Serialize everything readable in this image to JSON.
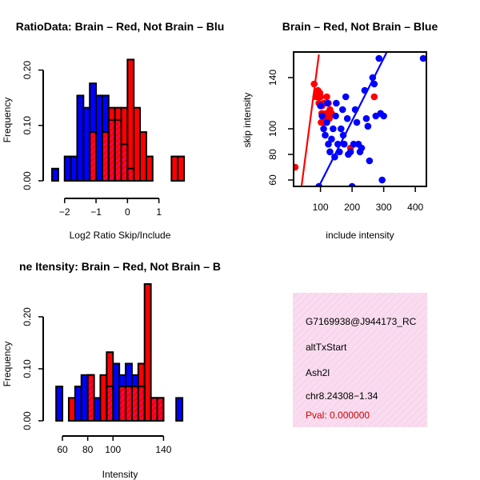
{
  "chart_data": [
    {
      "type": "histogram",
      "title": "RatioData: Brain – Red, Not Brain – Blu",
      "xlabel": "Log2 Ratio Skip/Include",
      "ylabel": "Frequency",
      "xlim": [
        -2.35,
        1.95
      ],
      "ylim": [
        0,
        0.25
      ],
      "xticks": [
        -2,
        -1,
        0,
        1
      ],
      "xtick_labels": [
        "−2",
        "−1",
        "0",
        "1"
      ],
      "yticks": [
        0.0,
        0.1,
        0.2
      ],
      "ytick_labels": [
        "0.00",
        "0.10",
        "0.20"
      ],
      "bin_width": 0.2,
      "series": [
        {
          "name": "Not Brain",
          "color": "#0000ff",
          "bins": [
            [
              -2.4,
              0.022
            ],
            [
              -2.0,
              0.044
            ],
            [
              -1.8,
              0.044
            ],
            [
              -1.6,
              0.154
            ],
            [
              -1.4,
              0.132
            ],
            [
              -1.2,
              0.176
            ],
            [
              -1.0,
              0.154
            ],
            [
              -0.8,
              0.154
            ],
            [
              -0.6,
              0.11
            ],
            [
              -0.4,
              0.11
            ],
            [
              -0.2,
              0.066
            ],
            [
              0.0,
              0.022
            ]
          ]
        },
        {
          "name": "Brain",
          "color": "#ff0000",
          "bins": [
            [
              -1.2,
              0.088
            ],
            [
              -0.8,
              0.088
            ],
            [
              -0.6,
              0.132
            ],
            [
              -0.4,
              0.132
            ],
            [
              -0.2,
              0.132
            ],
            [
              0.0,
              0.219
            ],
            [
              0.2,
              0.132
            ],
            [
              0.4,
              0.088
            ],
            [
              0.6,
              0.044
            ],
            [
              1.4,
              0.044
            ],
            [
              1.6,
              0.044
            ]
          ]
        }
      ]
    },
    {
      "type": "scatter",
      "title": "Brain – Red, Not Brain – Blue",
      "xlabel": "include intensity",
      "ylabel": "skip intensity",
      "xlim": [
        15,
        435
      ],
      "ylim": [
        55,
        160
      ],
      "xticks": [
        100,
        200,
        300,
        400
      ],
      "xtick_labels": [
        "100",
        "200",
        "300",
        "400"
      ],
      "yticks": [
        60,
        80,
        100,
        140
      ],
      "ytick_labels": [
        "60",
        "80",
        "100",
        "140"
      ],
      "series": [
        {
          "name": "Brain",
          "color": "#ff0000",
          "points": [
            [
              20,
              70
            ],
            [
              80,
              135
            ],
            [
              85,
              125
            ],
            [
              88,
              128
            ],
            [
              90,
              125
            ],
            [
              92,
              130
            ],
            [
              95,
              120
            ],
            [
              97,
              125
            ],
            [
              98,
              128
            ],
            [
              100,
              125
            ],
            [
              102,
              105
            ],
            [
              104,
              112
            ],
            [
              105,
              118
            ],
            [
              108,
              110
            ],
            [
              110,
              120
            ],
            [
              112,
              105
            ],
            [
              115,
              108
            ],
            [
              118,
              112
            ],
            [
              120,
              125
            ],
            [
              122,
              110
            ],
            [
              125,
              120
            ],
            [
              128,
              108
            ],
            [
              130,
              115
            ],
            [
              135,
              112
            ],
            [
              195,
              85
            ],
            [
              270,
              125
            ]
          ],
          "trend": [
            [
              40,
              55
            ],
            [
              95,
              158
            ]
          ]
        },
        {
          "name": "Not Brain",
          "color": "#0000ff",
          "points": [
            [
              95,
              55
            ],
            [
              100,
              118
            ],
            [
              105,
              110
            ],
            [
              110,
              100
            ],
            [
              115,
              95
            ],
            [
              120,
              105
            ],
            [
              122,
              120
            ],
            [
              125,
              88
            ],
            [
              130,
              82
            ],
            [
              135,
              92
            ],
            [
              140,
              100
            ],
            [
              145,
              78
            ],
            [
              148,
              110
            ],
            [
              150,
              120
            ],
            [
              155,
              88
            ],
            [
              160,
              82
            ],
            [
              165,
              100
            ],
            [
              170,
              115
            ],
            [
              172,
              95
            ],
            [
              175,
              88
            ],
            [
              180,
              125
            ],
            [
              185,
              108
            ],
            [
              188,
              80
            ],
            [
              195,
              82
            ],
            [
              200,
              55
            ],
            [
              205,
              88
            ],
            [
              210,
              115
            ],
            [
              215,
              105
            ],
            [
              220,
              88
            ],
            [
              225,
              82
            ],
            [
              230,
              85
            ],
            [
              240,
              130
            ],
            [
              245,
              108
            ],
            [
              250,
              102
            ],
            [
              255,
              75
            ],
            [
              265,
              140
            ],
            [
              270,
              135
            ],
            [
              275,
              110
            ],
            [
              285,
              155
            ],
            [
              290,
              112
            ],
            [
              295,
              60
            ],
            [
              300,
              110
            ],
            [
              425,
              155
            ]
          ],
          "trend": [
            [
              95,
              55
            ],
            [
              310,
              160
            ]
          ]
        }
      ]
    },
    {
      "type": "histogram",
      "title": "ne Itensity: Brain – Red, Not Brain – B",
      "xlabel": "Intensity",
      "ylabel": "Frequency",
      "xlim": [
        53,
        160
      ],
      "ylim": [
        0,
        0.26
      ],
      "xticks": [
        60,
        80,
        100,
        140
      ],
      "xtick_labels": [
        "60",
        "80",
        "100",
        "140"
      ],
      "yticks": [
        0.0,
        0.1,
        0.2
      ],
      "ytick_labels": [
        "0.00",
        "0.10",
        "0.20"
      ],
      "bin_width": 5,
      "series": [
        {
          "name": "Not Brain",
          "color": "#0000ff",
          "bins": [
            [
              55,
              0.066
            ],
            [
              70,
              0.066
            ],
            [
              75,
              0.088
            ],
            [
              80,
              0.088
            ],
            [
              85,
              0.044
            ],
            [
              95,
              0.066
            ],
            [
              100,
              0.11
            ],
            [
              105,
              0.088
            ],
            [
              110,
              0.11
            ],
            [
              115,
              0.088
            ],
            [
              120,
              0.066
            ],
            [
              130,
              0.044
            ],
            [
              135,
              0.044
            ],
            [
              150,
              0.044
            ]
          ]
        },
        {
          "name": "Brain",
          "color": "#ff0000",
          "bins": [
            [
              65,
              0.044
            ],
            [
              80,
              0.088
            ],
            [
              90,
              0.088
            ],
            [
              95,
              0.132
            ],
            [
              105,
              0.066
            ],
            [
              110,
              0.066
            ],
            [
              115,
              0.066
            ],
            [
              120,
              0.11
            ],
            [
              125,
              0.263
            ],
            [
              130,
              0.044
            ],
            [
              135,
              0.044
            ]
          ]
        }
      ]
    }
  ],
  "info": {
    "id": "G7169938@J944173_RC",
    "event": "altTxStart",
    "gene": "Ash2l",
    "location": "chr8.24308−1.34",
    "pval": "Pval: 0.000000"
  }
}
